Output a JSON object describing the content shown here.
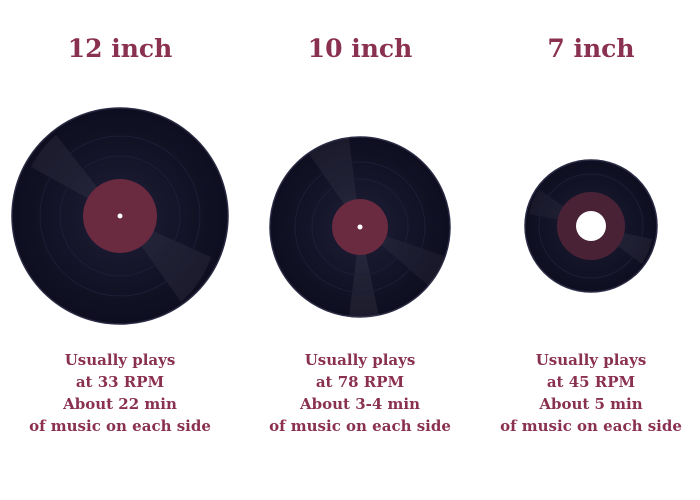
{
  "colors": {
    "text": "#8a3050",
    "vinyl": "#14142a",
    "label": "#6a2a40",
    "background": "#ffffff"
  },
  "records": [
    {
      "title": "12 inch",
      "line1": "Usually plays",
      "line2": "at 33 RPM",
      "line3": "About 22 min",
      "line4": "of music on each side",
      "hole": "spindle-dot"
    },
    {
      "title": "10 inch",
      "line1": "Usually plays",
      "line2": "at 78 RPM",
      "line3": "About 3-4 min",
      "line4": "of music on each side",
      "hole": "spindle-dot"
    },
    {
      "title": "7 inch",
      "line1": "Usually plays",
      "line2": "at 45 RPM",
      "line3": "About 5 min",
      "line4": "of music on each side",
      "hole": "large-center-hole"
    }
  ]
}
